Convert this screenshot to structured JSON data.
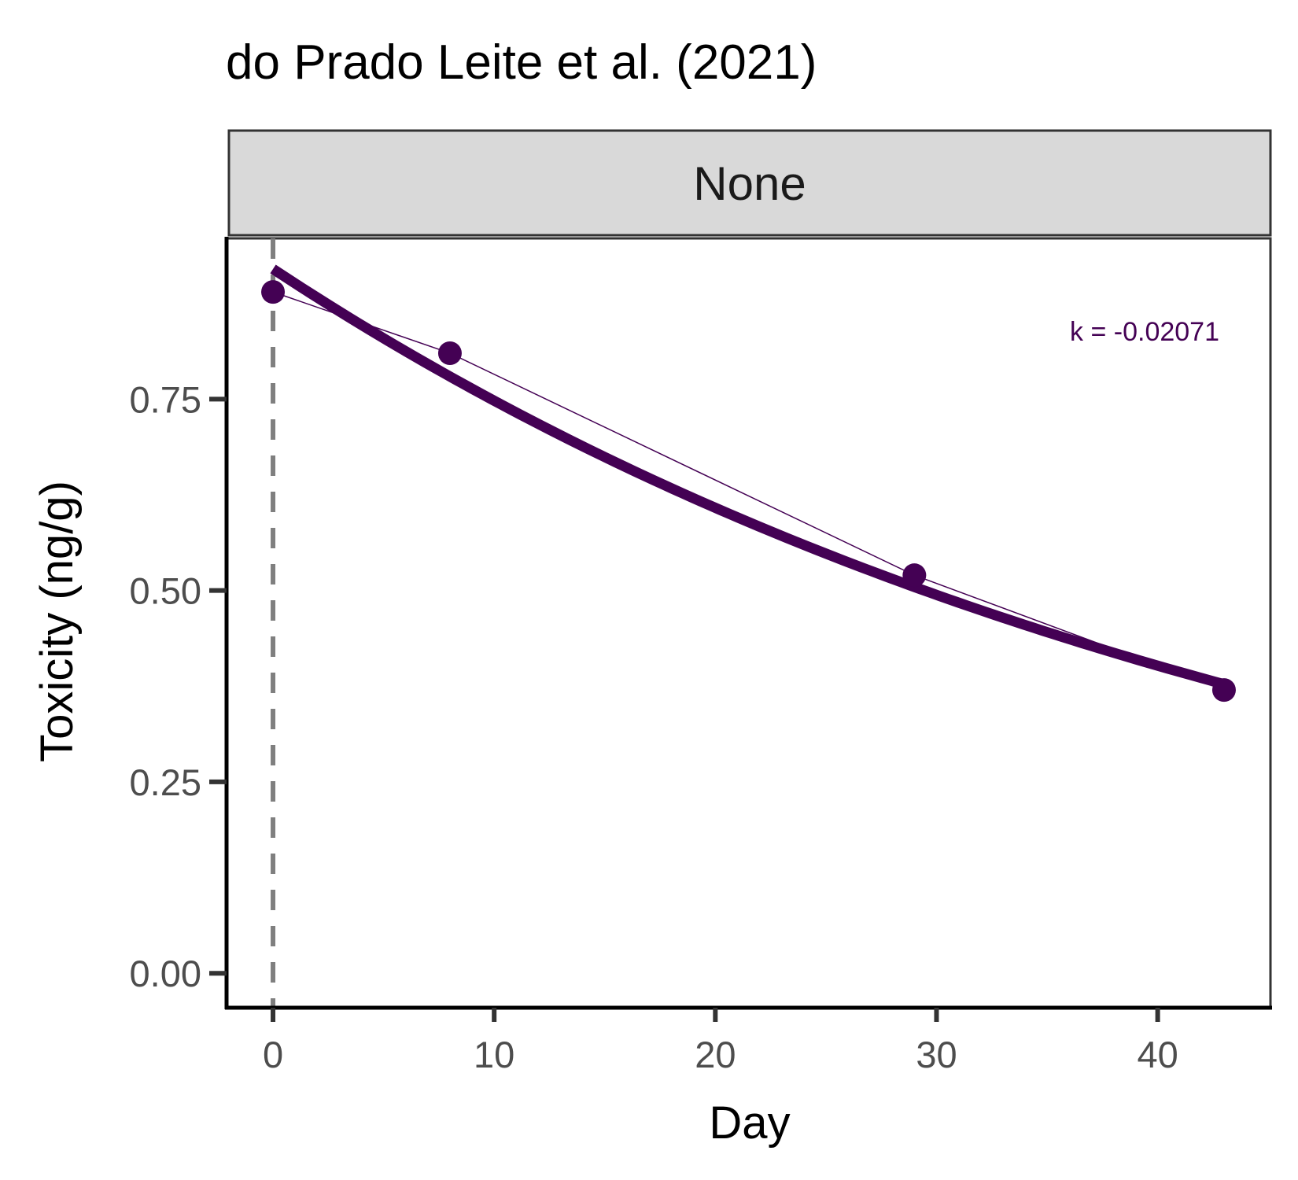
{
  "chart_data": {
    "type": "line",
    "title": "do Prado Leite et al. (2021)",
    "facet": "None",
    "xlabel": "Day",
    "ylabel": "Toxicity (ng/g)",
    "xlim": [
      -2.1,
      45.1
    ],
    "ylim": [
      -0.045,
      0.96
    ],
    "x_ticks": [
      0,
      10,
      20,
      30,
      40
    ],
    "x_tick_labels": [
      "0",
      "10",
      "20",
      "30",
      "40"
    ],
    "y_ticks": [
      0,
      0.25,
      0.5,
      0.75
    ],
    "y_tick_labels": [
      "0.00",
      "0.25",
      "0.50",
      "0.75"
    ],
    "reference_line_x": 0,
    "grid": false,
    "series": [
      {
        "x": [
          0,
          8,
          29,
          43
        ],
        "y": [
          0.89,
          0.81,
          0.52,
          0.37
        ],
        "color": "#440154"
      }
    ],
    "fit": {
      "k": -0.02071,
      "label": "k = -0.02071",
      "y0": 0.92,
      "x_range": [
        0,
        43
      ],
      "color": "#440154"
    }
  }
}
